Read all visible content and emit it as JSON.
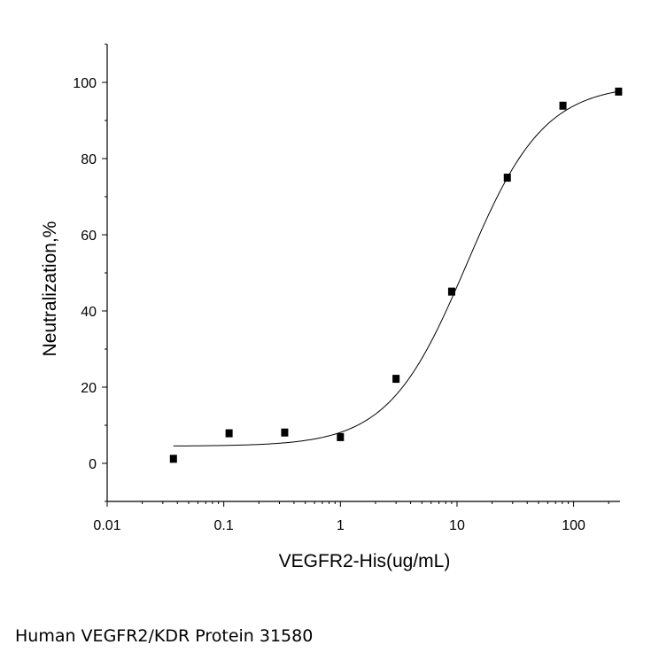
{
  "chart_data": {
    "type": "scatter",
    "x_scale": "log",
    "xlabel": "VEGFR2-His(ug/mL)",
    "ylabel": "Neutralization,%",
    "xlim": [
      0.01,
      250
    ],
    "ylim": [
      -10,
      110
    ],
    "x_ticks": [
      {
        "value": 0.01,
        "label": "0.01"
      },
      {
        "value": 0.1,
        "label": "0.1"
      },
      {
        "value": 1,
        "label": "1"
      },
      {
        "value": 10,
        "label": "10"
      },
      {
        "value": 100,
        "label": "100"
      }
    ],
    "y_ticks": [
      {
        "value": 0,
        "label": "0"
      },
      {
        "value": 20,
        "label": "20"
      },
      {
        "value": 40,
        "label": "40"
      },
      {
        "value": 60,
        "label": "60"
      },
      {
        "value": 80,
        "label": "80"
      },
      {
        "value": 100,
        "label": "100"
      }
    ],
    "series": [
      {
        "marker": "square",
        "color": "#000000",
        "points": [
          {
            "x": 0.037,
            "y": 1.3
          },
          {
            "x": 0.111,
            "y": 8.0
          },
          {
            "x": 0.333,
            "y": 8.2
          },
          {
            "x": 1.0,
            "y": 7.0
          },
          {
            "x": 3.0,
            "y": 22.3
          },
          {
            "x": 9.0,
            "y": 45.2
          },
          {
            "x": 27.0,
            "y": 75.1
          },
          {
            "x": 81.0,
            "y": 94.0
          },
          {
            "x": 243.0,
            "y": 97.7
          }
        ]
      }
    ],
    "fit_curve": {
      "model": "4PL",
      "bottom": 4.5,
      "top": 99.5,
      "ec50": 12.0,
      "hill": 1.3,
      "x_range": [
        0.037,
        243.0
      ],
      "color": "#000000"
    },
    "grid": false,
    "legend": "none"
  },
  "caption": "Human VEGFR2/KDR Protein 31580"
}
